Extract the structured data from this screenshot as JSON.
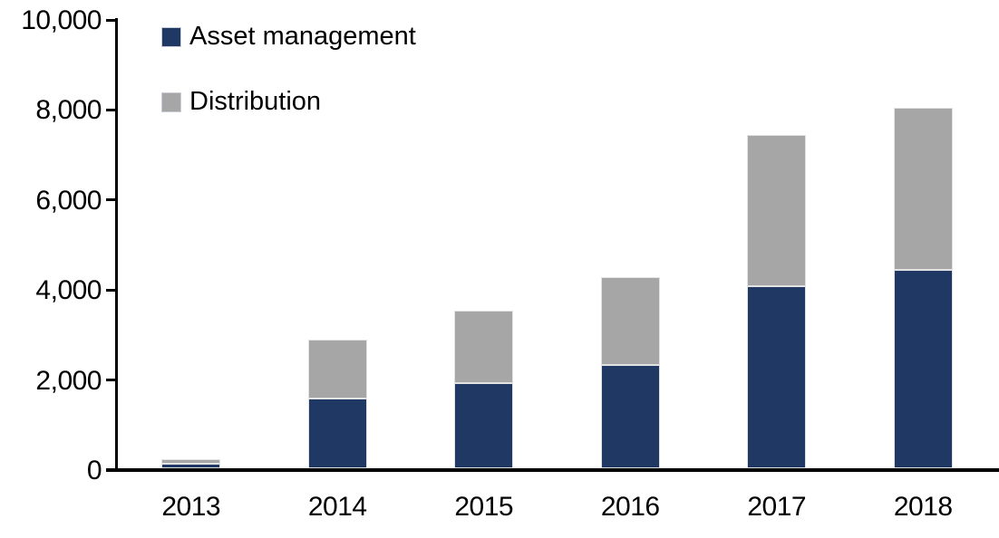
{
  "chart_data": {
    "type": "bar",
    "variant": "stacked-column",
    "title": "",
    "xlabel": "",
    "ylabel": "",
    "categories": [
      "2013",
      "2014",
      "2015",
      "2016",
      "2017",
      "2018"
    ],
    "series": [
      {
        "name": "Asset management",
        "color": "#1F3864",
        "values": [
          100,
          1550,
          1900,
          2300,
          4050,
          4400
        ]
      },
      {
        "name": "Distribution",
        "color": "#A6A6A6",
        "values": [
          100,
          1300,
          1600,
          1950,
          3350,
          3600
        ]
      }
    ],
    "totals": [
      200,
      2850,
      3500,
      4250,
      7400,
      8000
    ],
    "ylim": [
      0,
      10000
    ],
    "yticks": [
      {
        "value": 0,
        "label": "0"
      },
      {
        "value": 2000,
        "label": "2,000"
      },
      {
        "value": 4000,
        "label": "4,000"
      },
      {
        "value": 6000,
        "label": "6,000"
      },
      {
        "value": 8000,
        "label": "8,000"
      },
      {
        "value": 10000,
        "label": "10,000"
      }
    ],
    "grid": false,
    "legend_position": "top-left",
    "axis_color": "#000000",
    "background_color": "#FFFFFF"
  }
}
